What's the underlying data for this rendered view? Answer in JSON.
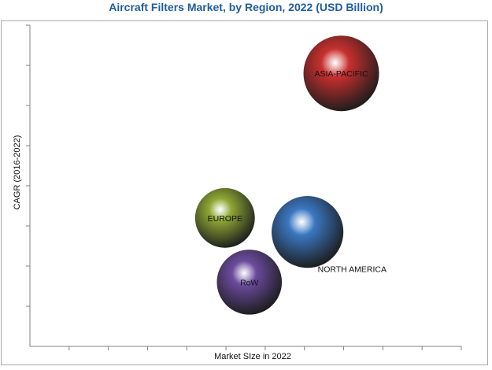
{
  "chart_data": {
    "type": "bubble",
    "title": "Aircraft Filters Market, by Region, 2022 (USD Billion)",
    "xlabel": "Market SIze in 2022",
    "ylabel": "CAGR (2016-2022)",
    "x_range": [
      0,
      11.5
    ],
    "y_range": [
      0,
      8
    ],
    "x_ticks": 11,
    "y_ticks": 8,
    "grid": false,
    "points": [
      {
        "label": "ASIA-PACIFIC",
        "x": 8.3,
        "y": 6.8,
        "size": 1.0,
        "color": "#c8302e",
        "label_pos": "center"
      },
      {
        "label": "EUROPE",
        "x": 5.2,
        "y": 3.2,
        "size": 0.79,
        "color": "#8ea834",
        "label_pos": "center"
      },
      {
        "label": "NORTH AMERICA",
        "x": 7.4,
        "y": 2.85,
        "size": 0.95,
        "color": "#3a77c1",
        "label_pos": "below-right"
      },
      {
        "label": "RoW",
        "x": 5.85,
        "y": 1.6,
        "size": 0.86,
        "color": "#6b4b9e",
        "label_pos": "center"
      }
    ]
  }
}
